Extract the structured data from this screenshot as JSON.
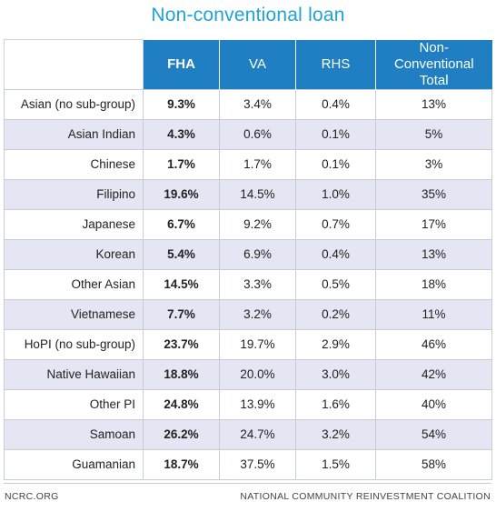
{
  "title": "Non-conventional loan",
  "footer": {
    "left": "NCRC.ORG",
    "right": "NATIONAL COMMUNITY REINVESTMENT COALITION"
  },
  "chart_data": {
    "type": "table",
    "title": "Non-conventional loan",
    "columns": [
      "FHA",
      "VA",
      "RHS",
      "Non-Conventional Total"
    ],
    "rows": [
      {
        "group": "Asian (no sub-group)",
        "values": [
          "9.3%",
          "3.4%",
          "0.4%",
          "13%"
        ]
      },
      {
        "group": "Asian Indian",
        "values": [
          "4.3%",
          "0.6%",
          "0.1%",
          "5%"
        ]
      },
      {
        "group": "Chinese",
        "values": [
          "1.7%",
          "1.7%",
          "0.1%",
          "3%"
        ]
      },
      {
        "group": "Filipino",
        "values": [
          "19.6%",
          "14.5%",
          "1.0%",
          "35%"
        ]
      },
      {
        "group": "Japanese",
        "values": [
          "6.7%",
          "9.2%",
          "0.7%",
          "17%"
        ]
      },
      {
        "group": "Korean",
        "values": [
          "5.4%",
          "6.9%",
          "0.4%",
          "13%"
        ]
      },
      {
        "group": "Other Asian",
        "values": [
          "14.5%",
          "3.3%",
          "0.5%",
          "18%"
        ]
      },
      {
        "group": "Vietnamese",
        "values": [
          "7.7%",
          "3.2%",
          "0.2%",
          "11%"
        ]
      },
      {
        "group": "HoPI (no sub-group)",
        "values": [
          "23.7%",
          "19.7%",
          "2.9%",
          "46%"
        ]
      },
      {
        "group": "Native Hawaiian",
        "values": [
          "18.8%",
          "20.0%",
          "3.0%",
          "42%"
        ]
      },
      {
        "group": "Other PI",
        "values": [
          "24.8%",
          "13.9%",
          "1.6%",
          "40%"
        ]
      },
      {
        "group": "Samoan",
        "values": [
          "26.2%",
          "24.7%",
          "3.2%",
          "54%"
        ]
      },
      {
        "group": "Guamanian",
        "values": [
          "18.7%",
          "37.5%",
          "1.5%",
          "58%"
        ]
      }
    ]
  },
  "colors": {
    "header_bg": "#1f7fc2",
    "title": "#1fa3d8",
    "stripe": "#e4e6f3"
  }
}
